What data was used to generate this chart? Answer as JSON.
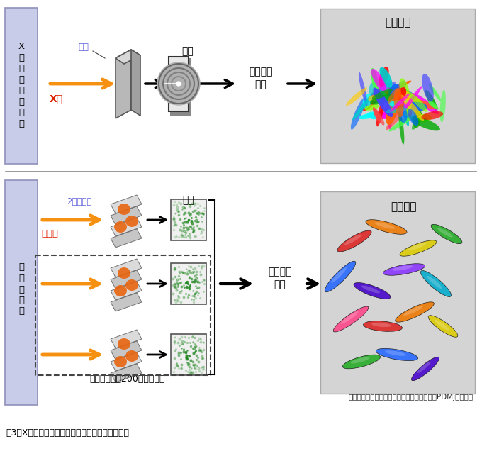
{
  "caption_small": "蛋白質画像は日本蛋白質構造データバンク（PDMj）による",
  "caption_main": "図3　X線と電子顕微鏡での結晶構造解析の模式図",
  "bg_color": "#ffffff",
  "panel_bg": "#d4d4d4",
  "label_box_color": "#c8cce8",
  "label_box_border": "#9090bb",
  "section1_label": "X\n線\n結\n晶\n構\n造\n解\n析",
  "section2_label": "電\n子\n顕\n微\n鏡",
  "crystal_label": "結晶",
  "xray_label": "X線",
  "detect_label1": "検出",
  "data_analysis1": "データの\n解析",
  "structure_label": "立体構造",
  "crystal2_label": "2次元結晶",
  "electron_label": "電子線",
  "detect_label2": "検出",
  "data_analysis2": "データの\n解析",
  "angle_label": "角度を変えて200枚程度撮影",
  "structure_label2": "立体構造",
  "orange_arrow": "#f59010",
  "crystal_color_label": "#6666dd",
  "xray_color_label": "#dd2200",
  "electron_color_label": "#dd2200",
  "crystal2_color_label": "#6666dd",
  "separator_color": "#888888"
}
